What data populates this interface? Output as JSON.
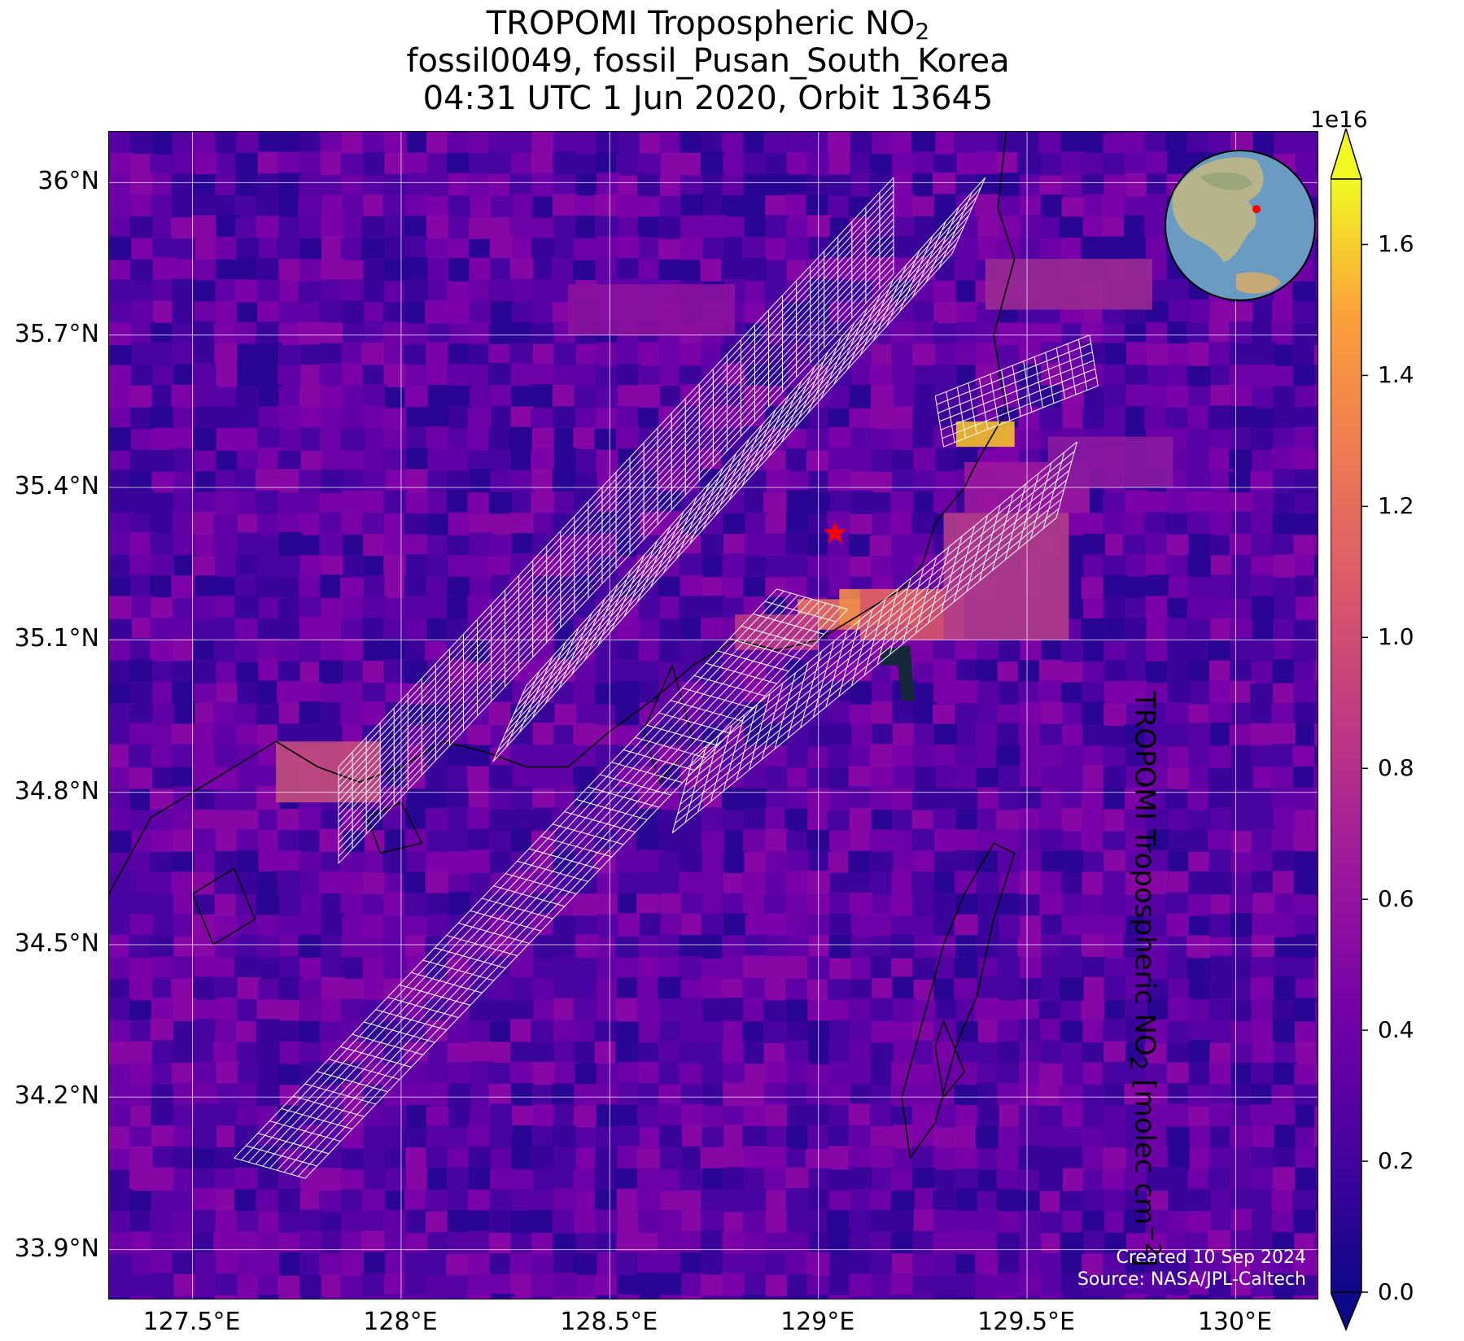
{
  "title": {
    "line1_text": "TROPOMI Tropospheric NO",
    "line1_sub": "2",
    "line2": "fossil0049, fossil_Pusan_South_Korea",
    "line3": "04:31 UTC 1 Jun 2020, Orbit 13645"
  },
  "map": {
    "lon_range": [
      127.3,
      130.2
    ],
    "lat_range": [
      33.8,
      36.1
    ],
    "lat_ticks": [
      {
        "value": 36.0,
        "label": "36°N"
      },
      {
        "value": 35.7,
        "label": "35.7°N"
      },
      {
        "value": 35.4,
        "label": "35.4°N"
      },
      {
        "value": 35.1,
        "label": "35.1°N"
      },
      {
        "value": 34.8,
        "label": "34.8°N"
      },
      {
        "value": 34.5,
        "label": "34.5°N"
      },
      {
        "value": 34.2,
        "label": "34.2°N"
      },
      {
        "value": 33.9,
        "label": "33.9°N"
      }
    ],
    "lon_ticks": [
      {
        "value": 127.5,
        "label": "127.5°E"
      },
      {
        "value": 128.0,
        "label": "128°E"
      },
      {
        "value": 128.5,
        "label": "128.5°E"
      },
      {
        "value": 129.0,
        "label": "129°E"
      },
      {
        "value": 129.5,
        "label": "129.5°E"
      },
      {
        "value": 130.0,
        "label": "130°E"
      }
    ],
    "target_marker": {
      "lon": 129.04,
      "lat": 35.31,
      "color": "#ff0000",
      "icon": "star-icon"
    },
    "gridlines": true,
    "inset_globe": {
      "icon": "globe-icon",
      "marker_color": "#ff0000"
    },
    "credit_line1": "Created 10 Sep 2024",
    "credit_line2": "Source: NASA/JPL-Caltech"
  },
  "colorbar": {
    "colormap": "plasma",
    "range": [
      0.0,
      1.7
    ],
    "exponent_label": "1e16",
    "label_text": "TROPOMI Tropospheric NO",
    "label_sub": "2",
    "label_units": " [molec cm",
    "label_sup": "−2",
    "label_end": "]",
    "ticks": [
      "0.0",
      "0.2",
      "0.4",
      "0.6",
      "0.8",
      "1.0",
      "1.2",
      "1.4",
      "1.6"
    ],
    "extend": "both"
  }
}
